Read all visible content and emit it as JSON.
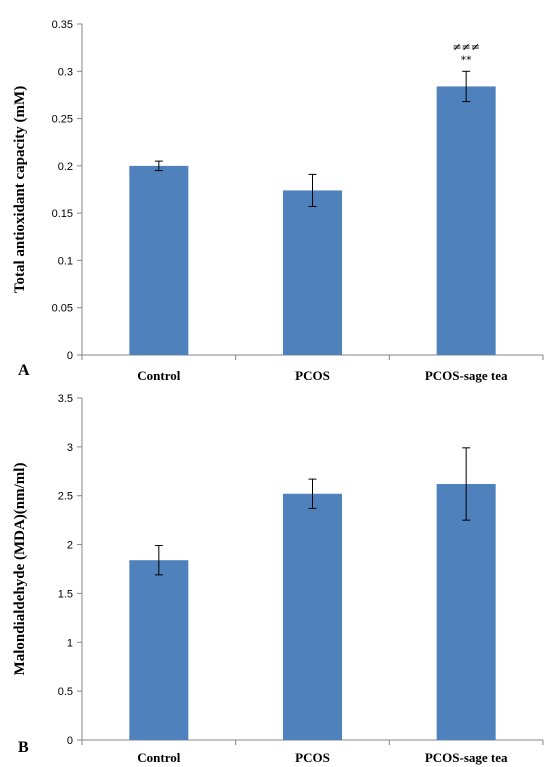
{
  "chart_data": [
    {
      "type": "bar",
      "panel_label": "A",
      "ylabel": "Total antioxidant capacity (mM)",
      "categories": [
        "Control",
        "PCOS",
        "PCOS-sage tea"
      ],
      "values": [
        0.2,
        0.174,
        0.284
      ],
      "errors": [
        0.005,
        0.017,
        0.016
      ],
      "annotations": [
        "",
        "",
        "≠≠≠\n**"
      ],
      "ylim": [
        0,
        0.35
      ],
      "yticks": [
        0,
        0.05,
        0.1,
        0.15,
        0.2,
        0.25,
        0.3,
        0.35
      ],
      "ytick_labels": [
        "0",
        "0.05",
        "0.1",
        "0.15",
        "0.2",
        "0.25",
        "0.3",
        "0.35"
      ],
      "bar_color": "#4f81bd",
      "grid": false,
      "legend": "none"
    },
    {
      "type": "bar",
      "panel_label": "B",
      "ylabel": "Malondialdehyde (MDA)(nm/ml)",
      "categories": [
        "Control",
        "PCOS",
        "PCOS-sage tea"
      ],
      "values": [
        1.84,
        2.52,
        2.62
      ],
      "errors": [
        0.15,
        0.15,
        0.37
      ],
      "annotations": [
        "",
        "",
        ""
      ],
      "ylim": [
        0,
        3.5
      ],
      "yticks": [
        0,
        0.5,
        1,
        1.5,
        2,
        2.5,
        3,
        3.5
      ],
      "ytick_labels": [
        "0",
        "0.5",
        "1",
        "1.5",
        "2",
        "2.5",
        "3",
        "3.5"
      ],
      "bar_color": "#4f81bd",
      "grid": false,
      "legend": "none"
    }
  ]
}
